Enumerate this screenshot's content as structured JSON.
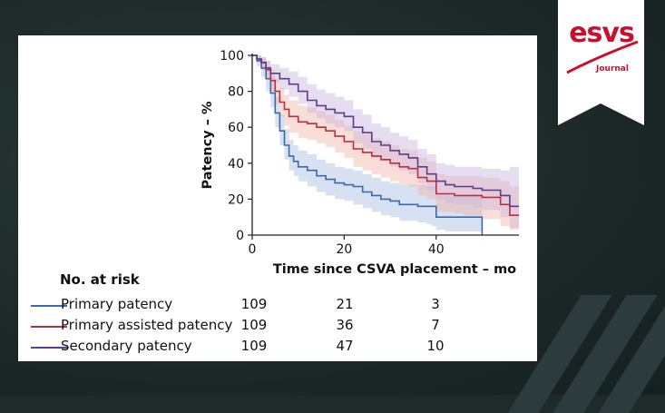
{
  "logo": {
    "name": "esvs",
    "subtitle": "Journal",
    "color": "#c8102e"
  },
  "chart_data": {
    "type": "line",
    "subtype": "kaplan-meier",
    "title": "",
    "xlabel": "Time since CSVA placement – mo",
    "ylabel": "Patency – %",
    "xlim": [
      0,
      58
    ],
    "ylim": [
      0,
      100
    ],
    "xticks": [
      0,
      20,
      40
    ],
    "yticks": [
      0,
      20,
      40,
      60,
      80,
      100
    ],
    "series": [
      {
        "name": "Primary patency",
        "color": "#3a6aa8",
        "band_color": "#a9bde0",
        "x": [
          0,
          1,
          2,
          3,
          4,
          5,
          6,
          7,
          8,
          9,
          10,
          12,
          14,
          16,
          18,
          20,
          22,
          24,
          26,
          28,
          30,
          32,
          34,
          36,
          38,
          39,
          40,
          42,
          44,
          46,
          48,
          49,
          50
        ],
        "y": [
          100,
          97,
          93,
          87,
          79,
          68,
          58,
          50,
          44,
          41,
          38,
          36,
          33,
          31,
          29,
          28,
          27,
          24,
          22,
          20,
          19,
          17,
          17,
          16,
          16,
          16,
          10,
          10,
          10,
          10,
          10,
          10,
          0
        ],
        "lower": [
          100,
          94,
          88,
          80,
          71,
          60,
          50,
          42,
          36,
          33,
          30,
          27,
          24,
          22,
          20,
          19,
          17,
          15,
          13,
          11,
          10,
          8,
          8,
          7,
          6,
          5,
          3,
          2,
          2,
          2,
          2,
          2,
          0
        ],
        "upper": [
          100,
          100,
          98,
          94,
          88,
          77,
          67,
          59,
          53,
          50,
          47,
          45,
          42,
          40,
          38,
          37,
          36,
          34,
          32,
          30,
          29,
          28,
          28,
          28,
          27,
          27,
          22,
          22,
          22,
          22,
          22,
          22,
          0
        ]
      },
      {
        "name": "Primary assisted patency",
        "color": "#b53040",
        "band_color": "#f2b3a6",
        "x": [
          0,
          1,
          2,
          3,
          4,
          5,
          6,
          7,
          8,
          10,
          12,
          14,
          16,
          18,
          20,
          22,
          24,
          26,
          28,
          30,
          32,
          34,
          36,
          38,
          40,
          42,
          44,
          46,
          48,
          50,
          52,
          54,
          56,
          58
        ],
        "y": [
          100,
          98,
          96,
          92,
          86,
          80,
          74,
          70,
          66,
          63,
          62,
          60,
          58,
          55,
          52,
          48,
          46,
          44,
          42,
          40,
          38,
          37,
          32,
          30,
          23,
          23,
          22,
          22,
          22,
          21,
          21,
          17,
          11,
          11
        ],
        "lower": [
          100,
          96,
          92,
          87,
          80,
          73,
          66,
          61,
          57,
          54,
          53,
          51,
          49,
          46,
          43,
          38,
          36,
          34,
          32,
          30,
          28,
          27,
          22,
          20,
          13,
          13,
          12,
          11,
          11,
          9,
          9,
          5,
          3,
          3
        ],
        "upper": [
          100,
          100,
          99,
          97,
          92,
          87,
          82,
          78,
          75,
          72,
          71,
          69,
          67,
          64,
          61,
          58,
          56,
          54,
          52,
          50,
          48,
          47,
          43,
          41,
          34,
          33,
          33,
          33,
          33,
          32,
          32,
          30,
          27,
          27
        ]
      },
      {
        "name": "Secondary patency",
        "color": "#5b3d8c",
        "band_color": "#c7b6de",
        "x": [
          0,
          1,
          2,
          3,
          4,
          6,
          8,
          10,
          12,
          14,
          16,
          18,
          20,
          22,
          24,
          26,
          28,
          30,
          32,
          34,
          36,
          38,
          40,
          42,
          44,
          46,
          48,
          50,
          52,
          54,
          56,
          58
        ],
        "y": [
          100,
          98,
          96,
          93,
          90,
          87,
          84,
          80,
          75,
          72,
          70,
          68,
          66,
          60,
          57,
          52,
          50,
          47,
          45,
          43,
          38,
          34,
          30,
          28,
          27,
          27,
          26,
          25,
          25,
          22,
          16,
          16
        ],
        "lower": [
          100,
          97,
          94,
          89,
          85,
          81,
          77,
          73,
          68,
          65,
          62,
          60,
          58,
          51,
          48,
          43,
          41,
          38,
          36,
          34,
          29,
          25,
          20,
          18,
          17,
          17,
          15,
          14,
          14,
          10,
          4,
          4
        ],
        "upper": [
          100,
          100,
          99,
          97,
          95,
          93,
          91,
          88,
          84,
          81,
          79,
          77,
          75,
          70,
          67,
          62,
          60,
          57,
          55,
          53,
          48,
          45,
          40,
          39,
          38,
          38,
          38,
          37,
          37,
          36,
          38,
          38
        ]
      }
    ],
    "risk_table": {
      "title": "No. at risk",
      "time_points": [
        0,
        20,
        40
      ],
      "rows": [
        {
          "label": "Primary patency",
          "color": "#3a6aa8",
          "values": [
            "109",
            "21",
            "3"
          ]
        },
        {
          "label": "Primary assisted patency",
          "color": "#b53040",
          "values": [
            "109",
            "36",
            "7"
          ]
        },
        {
          "label": "Secondary patency",
          "color": "#5b3d8c",
          "values": [
            "109",
            "47",
            "10"
          ]
        }
      ]
    }
  }
}
